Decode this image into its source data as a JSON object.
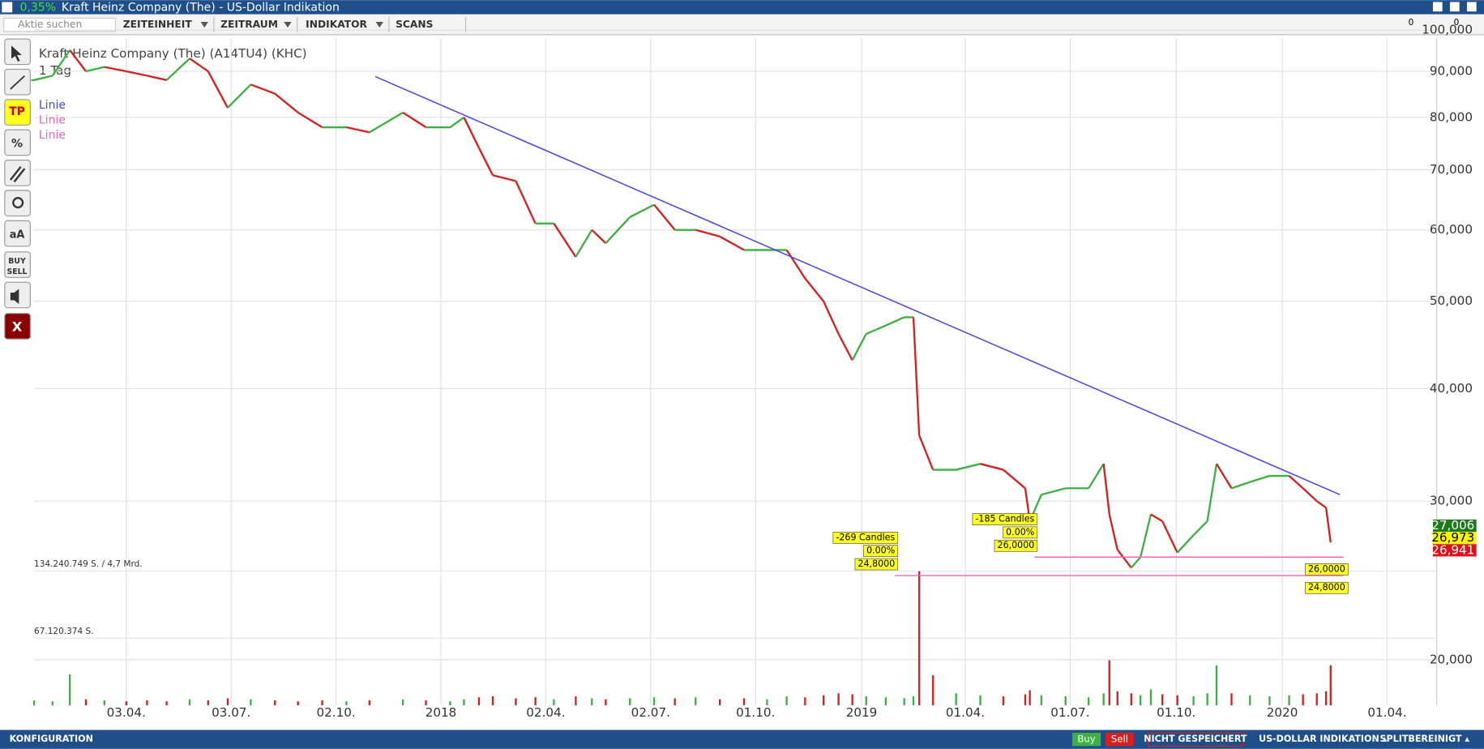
{
  "window": {
    "change": "0,35%",
    "title": "Kraft Heinz Company (The) - US-Dollar Indikation"
  },
  "toolbar": {
    "search": "Aktie suchen",
    "menus": [
      "ZEITEINHEIT",
      "ZEITRAUM",
      "INDIKATOR",
      "SCANS"
    ],
    "badges": [
      "0",
      "0"
    ]
  },
  "tools": [
    "TP",
    "%",
    "aA",
    "BUY",
    "SELL",
    "X"
  ],
  "footer": {
    "config": "KONFIGURATION",
    "buy": "Buy",
    "sell": "Sell",
    "saved": "NICHT GESPEICHERT",
    "currency": "US-DOLLAR INDIKATION ▴",
    "split": "SPLITBEREINIGT ▴"
  },
  "chart_data": {
    "type": "candlestick",
    "title": "Kraft Heinz Company (The) (A14TU4) (KHC)",
    "subtitle": "1 Tag",
    "log_scale": true,
    "grid": true,
    "up_color": "#3cb043",
    "down_color": "#d42020",
    "x": [
      "2017-01-13",
      "2017-01-29",
      "2017-02-13",
      "2017-02-27",
      "2017-03-15",
      "2017-04-03",
      "2017-04-21",
      "2017-05-08",
      "2017-05-28",
      "2017-06-13",
      "2017-06-30",
      "2017-07-20",
      "2017-08-10",
      "2017-08-30",
      "2017-09-20",
      "2017-10-11",
      "2017-10-31",
      "2017-11-29",
      "2017-12-19",
      "2018-01-09",
      "2018-01-21",
      "2018-02-03",
      "2018-02-15",
      "2018-03-07",
      "2018-03-24",
      "2018-04-09",
      "2018-04-28",
      "2018-05-12",
      "2018-05-24",
      "2018-06-14",
      "2018-07-05",
      "2018-07-23",
      "2018-08-10",
      "2018-08-31",
      "2018-09-21",
      "2018-10-11",
      "2018-10-28",
      "2018-11-13",
      "2018-11-29",
      "2018-12-12",
      "2018-12-24",
      "2019-01-05",
      "2019-01-22",
      "2019-02-07",
      "2019-02-15",
      "2019-02-20",
      "2019-03-04",
      "2019-03-24",
      "2019-04-14",
      "2019-05-04",
      "2019-05-23",
      "2019-05-27",
      "2019-06-06",
      "2019-06-27",
      "2019-07-17",
      "2019-07-30",
      "2019-08-04",
      "2019-08-11",
      "2019-08-23",
      "2019-08-31",
      "2019-09-09",
      "2019-09-19",
      "2019-10-02",
      "2019-10-16",
      "2019-10-28",
      "2019-11-05",
      "2019-11-18",
      "2019-12-04",
      "2019-12-21",
      "2020-01-07",
      "2020-01-19",
      "2020-01-31",
      "2020-02-08",
      "2020-02-12"
    ],
    "values": [
      88,
      89,
      95,
      90,
      91,
      90,
      89,
      88,
      93,
      90,
      82,
      87,
      85,
      81,
      78,
      78,
      77,
      81,
      78,
      78,
      80,
      74,
      69,
      68,
      61,
      61,
      56,
      60,
      58,
      62,
      64,
      60,
      60,
      59,
      57,
      57,
      57,
      53,
      50,
      46,
      43,
      46,
      47,
      48,
      48,
      35.5,
      32.5,
      32.5,
      33,
      32.5,
      31,
      28.5,
      30.5,
      31,
      31,
      33,
      29,
      26.5,
      25.3,
      26,
      29,
      28.5,
      26.3,
      27.5,
      28.5,
      33,
      31,
      31.5,
      32,
      32,
      31,
      30,
      29.5,
      27
    ],
    "volume": [
      5000000,
      4000000,
      31000000,
      6000000,
      5000000,
      4000000,
      5000000,
      4000000,
      6000000,
      5000000,
      7000000,
      6000000,
      5000000,
      4000000,
      5000000,
      4000000,
      5000000,
      6000000,
      5000000,
      4000000,
      6000000,
      8000000,
      9000000,
      7000000,
      8000000,
      6000000,
      9000000,
      7000000,
      6000000,
      7000000,
      8000000,
      7000000,
      8000000,
      6000000,
      7000000,
      6000000,
      9000000,
      8000000,
      10000000,
      12000000,
      11000000,
      9000000,
      8000000,
      7000000,
      9000000,
      134000000,
      30000000,
      12000000,
      10000000,
      9000000,
      11000000,
      15000000,
      10000000,
      9000000,
      8000000,
      12000000,
      45000000,
      14000000,
      12000000,
      10000000,
      16000000,
      11000000,
      10000000,
      9000000,
      12000000,
      40000000,
      12000000,
      10000000,
      9000000,
      10000000,
      11000000,
      12000000,
      14000000,
      40000000
    ],
    "xlim": [
      "2017-01-13",
      "2020-05-14"
    ],
    "xticks": [
      {
        "value": "2017-04-03",
        "label": "03.04."
      },
      {
        "value": "2017-07-03",
        "label": "03.07."
      },
      {
        "value": "2017-10-02",
        "label": "02.10."
      },
      {
        "value": "2018-01-01",
        "label": "2018"
      },
      {
        "value": "2018-04-02",
        "label": "02.04."
      },
      {
        "value": "2018-07-02",
        "label": "02.07."
      },
      {
        "value": "2018-10-01",
        "label": "01.10."
      },
      {
        "value": "2019-01-01",
        "label": "2019"
      },
      {
        "value": "2019-04-01",
        "label": "01.04."
      },
      {
        "value": "2019-07-01",
        "label": "01.07."
      },
      {
        "value": "2019-10-01",
        "label": "01.10."
      },
      {
        "value": "2020-01-01",
        "label": "2020"
      },
      {
        "value": "2020-04-01",
        "label": "01.04."
      }
    ],
    "ylim": [
      17.8,
      98
    ],
    "yticks": [
      {
        "value": 100,
        "label": "100,000"
      },
      {
        "value": 90,
        "label": "90,000"
      },
      {
        "value": 80,
        "label": "80,000"
      },
      {
        "value": 70,
        "label": "70,000"
      },
      {
        "value": 60,
        "label": "60,000"
      },
      {
        "value": 50,
        "label": "50,000"
      },
      {
        "value": 40,
        "label": "40,000"
      },
      {
        "value": 30,
        "label": "30,000"
      },
      {
        "value": 20,
        "label": "20,000"
      }
    ],
    "vlim": [
      0,
      140000000
    ],
    "vticks": [
      {
        "value": 134240749,
        "label": "134.240.749 S. / 4,7 Mrd."
      },
      {
        "value": 67120374,
        "label": "67.120.374 S."
      }
    ],
    "trendline": {
      "name": "Linie",
      "color": "#4646e6",
      "x": [
        "2017-11-05",
        "2020-02-20"
      ],
      "values": [
        88.8,
        30.5
      ]
    },
    "levels": [
      {
        "name": "Linie",
        "color": "#ea66b8",
        "value": 26,
        "start": "2019-05-31",
        "end": "2020-02-23",
        "candles": "-185 Candles",
        "pct": "0.00%",
        "value_label": "26,0000"
      },
      {
        "name": "Linie",
        "color": "#ea66b8",
        "value": 24.8,
        "start": "2019-01-30",
        "end": "2020-02-23",
        "candles": "-269 Candles",
        "pct": "0.00%",
        "value_label": "24,8000"
      }
    ],
    "price_tags": [
      {
        "value": 27.006,
        "label": "27,006",
        "color": "#1b7a1b"
      },
      {
        "value": 26.973,
        "label": "26,973",
        "color": "#f5f500"
      },
      {
        "value": 26.941,
        "label": "26,941",
        "color": "#e0101c"
      }
    ]
  }
}
